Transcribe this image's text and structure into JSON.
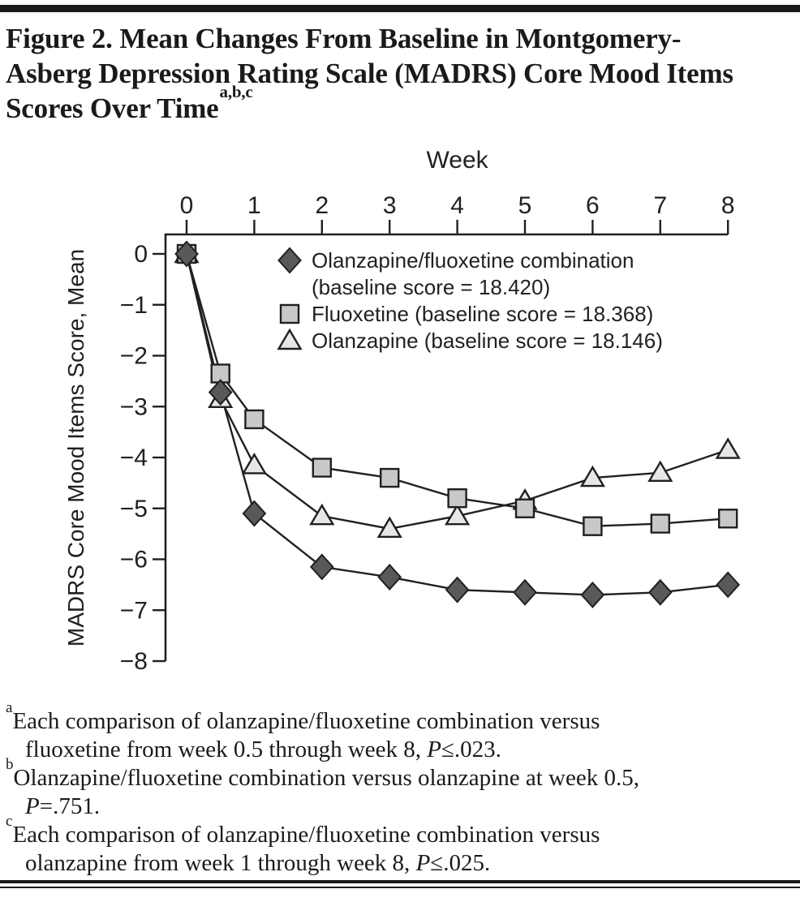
{
  "title": {
    "lines": [
      "Figure 2. Mean Changes From Baseline in Montgomery-",
      "Asberg Depression Rating Scale (MADRS) Core Mood Items",
      "Scores Over Time"
    ],
    "superscript": "a,b,c"
  },
  "chart_data": {
    "type": "line",
    "xlabel": "Week",
    "ylabel": "MADRS Core Mood Items Score, Mean",
    "x": [
      0,
      0.5,
      1,
      2,
      3,
      4,
      5,
      6,
      7,
      8
    ],
    "xlim": [
      0,
      8
    ],
    "ylim": [
      -8,
      0
    ],
    "x_ticks": [
      0,
      1,
      2,
      3,
      4,
      5,
      6,
      7,
      8
    ],
    "x_tick_labels": [
      "0",
      "1",
      "2",
      "3",
      "4",
      "5",
      "6",
      "7",
      "8"
    ],
    "y_ticks": [
      0,
      -1,
      -2,
      -3,
      -4,
      -5,
      -6,
      -7,
      -8
    ],
    "y_tick_labels": [
      "0",
      "−1",
      "−2",
      "−3",
      "−4",
      "−5",
      "−6",
      "−7",
      "−8"
    ],
    "axis_position": {
      "x_axis": "top",
      "y_axis": "left"
    },
    "grid": false,
    "legend_position": "inside-top-center",
    "line_color": "#231f20",
    "series": [
      {
        "name": "Olanzapine/fluoxetine combination (baseline score = 18.420)",
        "legend_lines": [
          "Olanzapine/fluoxetine combination",
          "(baseline score = 18.420)"
        ],
        "marker": "diamond",
        "marker_fill": "#58595b",
        "values": [
          0,
          -2.72,
          -5.1,
          -6.15,
          -6.35,
          -6.6,
          -6.65,
          -6.7,
          -6.65,
          -6.5
        ]
      },
      {
        "name": "Fluoxetine (baseline score = 18.368)",
        "legend_lines": [
          "Fluoxetine (baseline score = 18.368)"
        ],
        "marker": "square",
        "marker_fill": "#c7c8ca",
        "values": [
          0,
          -2.35,
          -3.25,
          -4.2,
          -4.4,
          -4.8,
          -5.0,
          -5.35,
          -5.3,
          -5.2
        ]
      },
      {
        "name": "Olanzapine (baseline score = 18.146)",
        "legend_lines": [
          "Olanzapine (baseline score = 18.146)"
        ],
        "marker": "triangle",
        "marker_fill": "#e6e7e8",
        "values": [
          0,
          -2.85,
          -4.15,
          -5.15,
          -5.4,
          -5.15,
          -4.85,
          -4.4,
          -4.3,
          -3.85
        ]
      }
    ]
  },
  "footnotes": [
    {
      "sup": "a",
      "line1": "Each comparison of olanzapine/fluoxetine combination versus",
      "line2_pre": "fluoxetine from week 0.5 through week 8, ",
      "p": "P",
      "stat": "≤.023."
    },
    {
      "sup": "b",
      "line1": "Olanzapine/fluoxetine combination versus olanzapine at week 0.5,",
      "line2_pre": "",
      "p": "P",
      "stat": "=.751."
    },
    {
      "sup": "c",
      "line1": "Each comparison of olanzapine/fluoxetine combination versus",
      "line2_pre": "olanzapine from week 1 through week 8, ",
      "p": "P",
      "stat": "≤.025."
    }
  ]
}
